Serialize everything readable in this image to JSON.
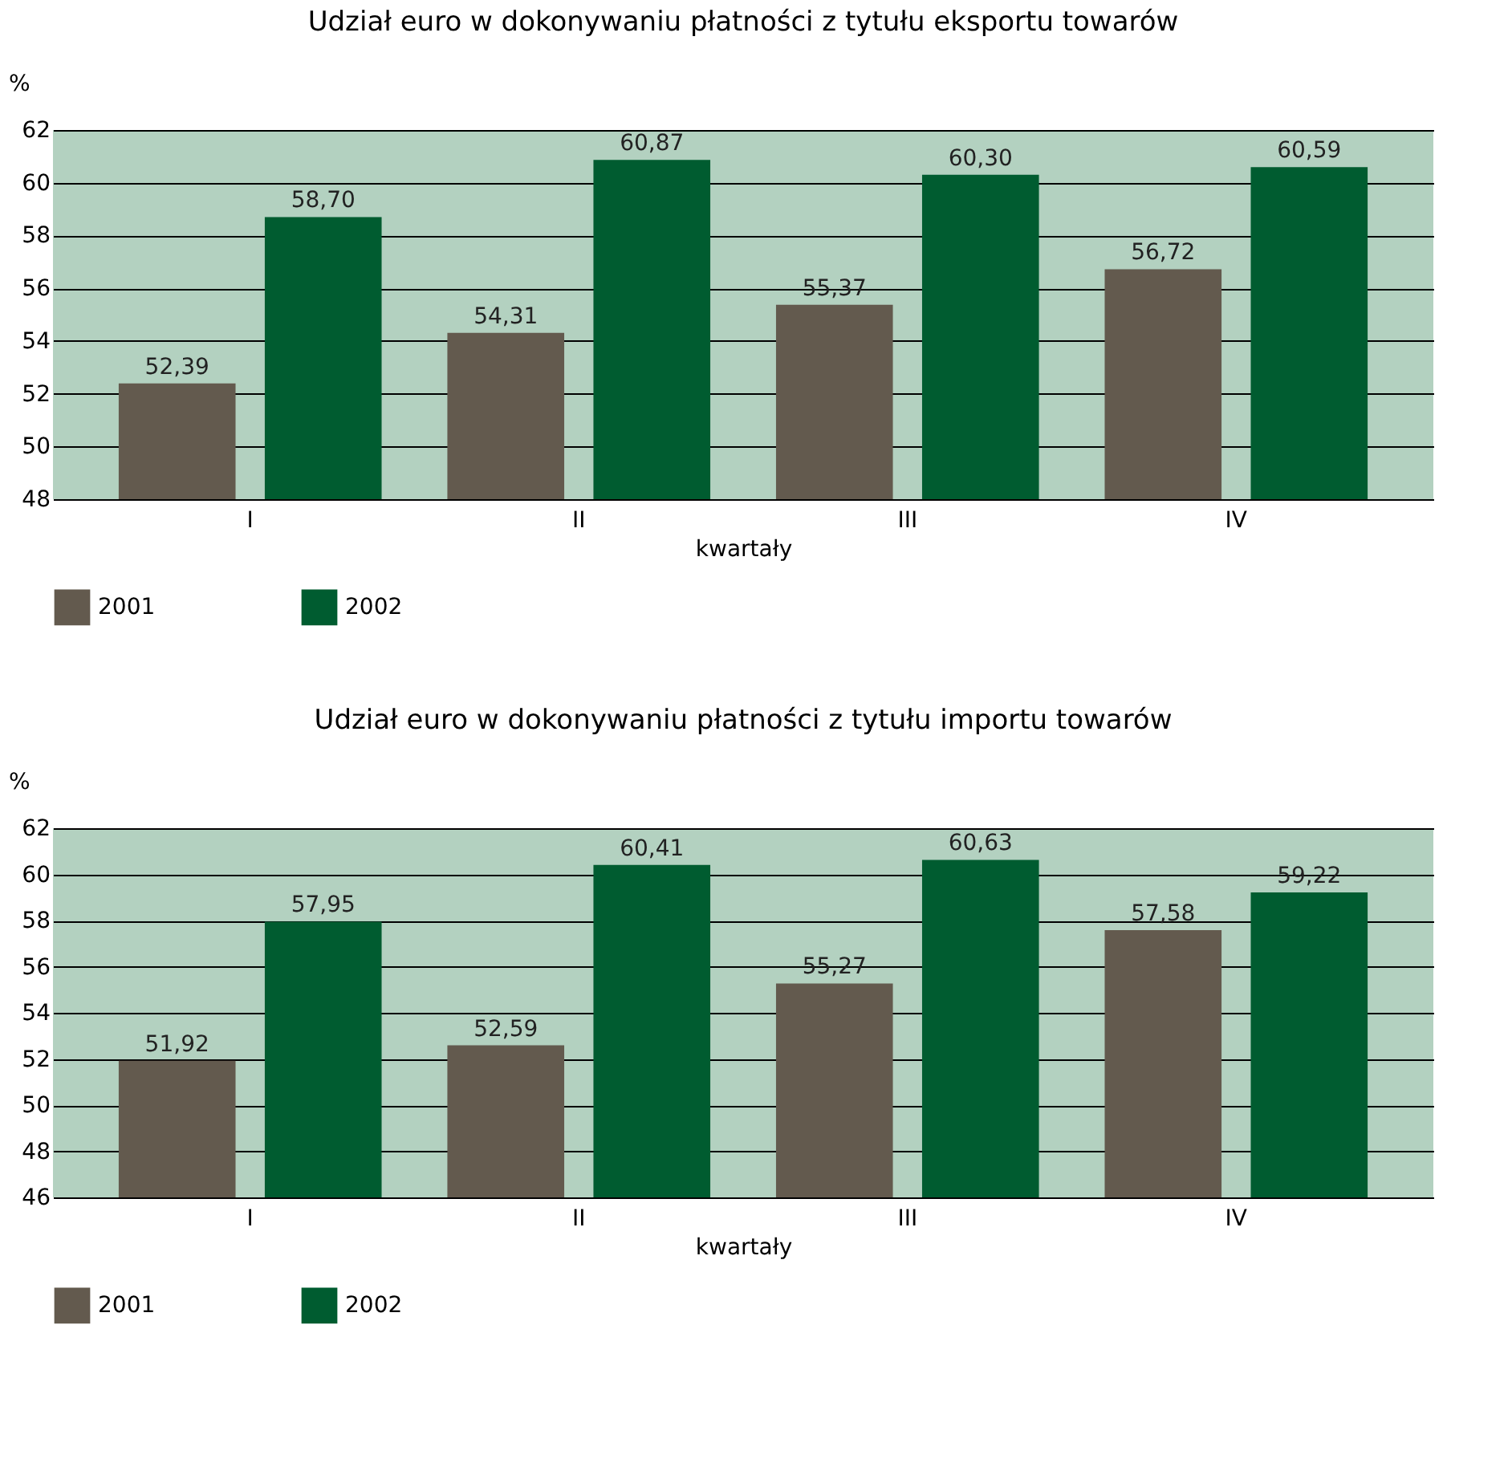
{
  "chart_data": [
    {
      "type": "bar",
      "title": "Udział euro w dokonywaniu płatności z tytułu eksportu towarów",
      "xlabel": "kwartały",
      "ylabel": "%",
      "categories": [
        "I",
        "II",
        "III",
        "IV"
      ],
      "series": [
        {
          "name": "2001",
          "color": "#635a4e",
          "values": [
            52.39,
            54.31,
            55.37,
            56.72
          ],
          "value_labels": [
            "52,39",
            "54,31",
            "55,37",
            "56,72"
          ]
        },
        {
          "name": "2002",
          "color": "#005c30",
          "values": [
            58.7,
            60.87,
            60.3,
            60.59
          ],
          "value_labels": [
            "58,70",
            "60,87",
            "60,30",
            "60,59"
          ]
        }
      ],
      "ylim": [
        48,
        62
      ],
      "yticks": [
        48,
        50,
        52,
        54,
        56,
        58,
        60,
        62
      ],
      "grid": "y",
      "legend": "bottom left"
    },
    {
      "type": "bar",
      "title": "Udział euro w dokonywaniu płatności z tytułu importu towarów",
      "xlabel": "kwartały",
      "ylabel": "%",
      "categories": [
        "I",
        "II",
        "III",
        "IV"
      ],
      "series": [
        {
          "name": "2001",
          "color": "#635a4e",
          "values": [
            51.92,
            52.59,
            55.27,
            57.58
          ],
          "value_labels": [
            "51,92",
            "52,59",
            "55,27",
            "57,58"
          ]
        },
        {
          "name": "2002",
          "color": "#005c30",
          "values": [
            57.95,
            60.41,
            60.63,
            59.22
          ],
          "value_labels": [
            "57,95",
            "60,41",
            "60,63",
            "59,22"
          ]
        }
      ],
      "ylim": [
        46,
        62
      ],
      "yticks": [
        46,
        48,
        50,
        52,
        54,
        56,
        58,
        60,
        62
      ],
      "grid": "y",
      "legend": "bottom left"
    }
  ]
}
